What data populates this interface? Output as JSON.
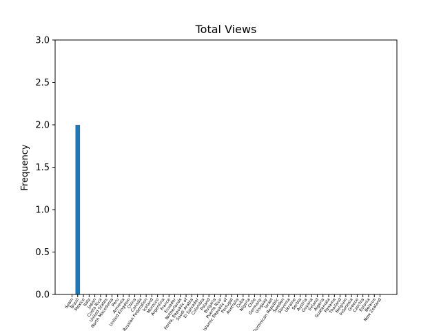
{
  "chart_data": {
    "type": "bar",
    "title": "Total Views",
    "xlabel": "",
    "ylabel": "Frequency",
    "ylim": [
      0,
      3.0
    ],
    "yticks": [
      "0.0",
      "0.5",
      "1.0",
      "1.5",
      "2.0",
      "2.5",
      "3.0"
    ],
    "grid": false,
    "color": "#1f77b4",
    "categories": [
      "Spain",
      "Brazil",
      "Mexico",
      "Italy",
      "Japan",
      "Costa Rica",
      "United States",
      "North Macedonia",
      "Peru",
      "Armenia",
      "United Kingdom",
      "China",
      "Canada",
      "Russian Federation",
      "Iceland",
      "Morocco",
      "Argentina",
      "France",
      "Ecuador",
      "Netherlands",
      "Korea, Republic of",
      "Saudi Arabia",
      "El Salvador",
      "Colombia",
      "Poland",
      "Bulgaria",
      "Puerto Rico",
      "Iran, Islamic Republic of",
      "Portugal",
      "Australia",
      "Cuba",
      "Nigeria",
      "Chile",
      "Germany",
      "Uruguay",
      "Israel",
      "Dominican Republic",
      "Sweden",
      "Slovenia",
      "Ukraine",
      "Serbia",
      "Austria",
      "Guyana",
      "Ireland",
      "Algeria",
      "Guatemala",
      "Panama",
      "Thailand",
      "Belgium",
      "Indonesia",
      "Greece",
      "Czechia",
      "Estonia",
      "Belarus",
      "New Zealand"
    ],
    "values": [
      0,
      2,
      0,
      0,
      0,
      0,
      0,
      0,
      0,
      0,
      0,
      0,
      0,
      0,
      0,
      0,
      0,
      0,
      0,
      0,
      0,
      0,
      0,
      0,
      0,
      0,
      0,
      0,
      0,
      0,
      0,
      0,
      0,
      0,
      0,
      0,
      0,
      0,
      0,
      0,
      0,
      0,
      0,
      0,
      0,
      0,
      0,
      0,
      0,
      0,
      0,
      0,
      0,
      0,
      0
    ]
  }
}
